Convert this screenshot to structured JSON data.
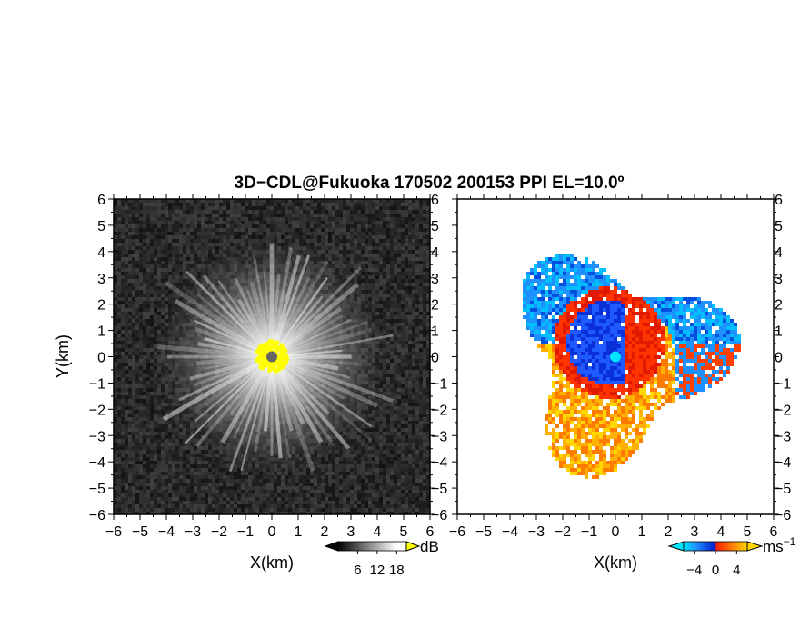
{
  "title": "3D−CDL@Fukuoka 170502 200153 PPI EL=10.0º",
  "chart_data": [
    {
      "type": "heatmap",
      "panel": "left",
      "quantity": "reflectivity (dB)",
      "xlabel": "X(km)",
      "ylabel": "Y(km)",
      "xlim": [
        -6,
        6
      ],
      "ylim": [
        -6,
        6
      ],
      "xticks": [
        "−6",
        "−5",
        "−4",
        "−3",
        "−2",
        "−1",
        "0",
        "1",
        "2",
        "3",
        "4",
        "5",
        "6"
      ],
      "yticks": [
        "−6",
        "−5",
        "−4",
        "−3",
        "−2",
        "−1",
        "0",
        "1",
        "2",
        "3",
        "4",
        "5",
        "6"
      ],
      "colorbar": {
        "unit": "dB",
        "ticks": [
          "6",
          "12",
          "18"
        ],
        "tick_values": [
          6,
          12,
          18
        ],
        "range": [
          0,
          21
        ],
        "colors": [
          "#000000",
          "#ffffff",
          "#ffff00"
        ]
      },
      "features": {
        "bright_radial_echo_radius_km": 4.5,
        "near_range_saturation_radius_km": 0.6,
        "center_marker": [
          0,
          0
        ]
      }
    },
    {
      "type": "heatmap",
      "panel": "right",
      "quantity": "Doppler velocity (m s⁻¹)",
      "xlabel": "X(km)",
      "xlim": [
        -6,
        6
      ],
      "ylim": [
        -6,
        6
      ],
      "xticks": [
        "−6",
        "−5",
        "−4",
        "−3",
        "−2",
        "−1",
        "0",
        "1",
        "2",
        "3",
        "4",
        "5",
        "6"
      ],
      "yticks": [
        "−6",
        "−5",
        "−4",
        "−3",
        "−2",
        "−1",
        "0",
        "1",
        "2",
        "3",
        "4",
        "5",
        "6"
      ],
      "colorbar": {
        "unit": "ms",
        "unit_exponent": "−1",
        "ticks": [
          "−4",
          "0",
          "4"
        ],
        "tick_values": [
          -4,
          0,
          4
        ],
        "range": [
          -6,
          6
        ],
        "colors": [
          "#00e5ff",
          "#1e90ff",
          "#0020d0",
          "#ff2000",
          "#ff8c00",
          "#ffd700"
        ]
      },
      "features": {
        "inbound_core_center_km": [
          -0.3,
          0.6
        ],
        "outbound_ring_center_km": [
          -0.6,
          -0.8
        ],
        "echo_outer_radius_km": 4.5
      }
    }
  ]
}
